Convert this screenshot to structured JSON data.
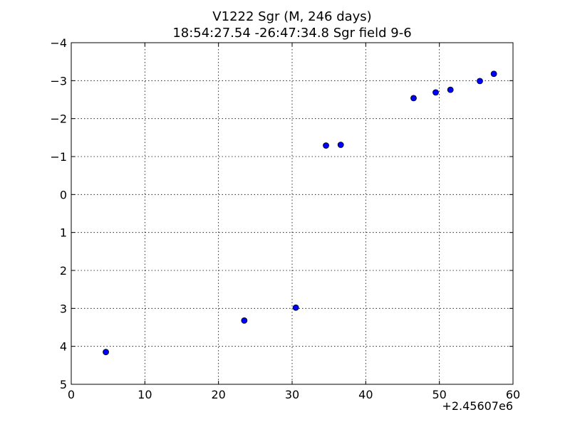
{
  "chart_data": {
    "type": "scatter",
    "title": "V1222 Sgr  (M, 246 days)",
    "subtitle": "18:54:27.54 -26:47:34.8 Sgr field 9-6",
    "xlabel": "",
    "ylabel": "",
    "x_offset_label": "+2.45607e6",
    "xlim": [
      0,
      60
    ],
    "ylim": [
      5,
      -4
    ],
    "y_inverted": true,
    "grid": true,
    "x_ticks": [
      0,
      10,
      20,
      30,
      40,
      50,
      60
    ],
    "y_ticks": [
      -4,
      -3,
      -2,
      -1,
      0,
      1,
      2,
      3,
      4,
      5
    ],
    "x_tick_labels": [
      "0",
      "10",
      "20",
      "30",
      "40",
      "50",
      "60"
    ],
    "y_tick_labels": [
      "−4",
      "−3",
      "−2",
      "−1",
      "0",
      "1",
      "2",
      "3",
      "4",
      "5"
    ],
    "marker_color": "#0000ff",
    "series": [
      {
        "points": [
          {
            "x": 4.7,
            "y": 4.15,
            "err": 0.08
          },
          {
            "x": 23.5,
            "y": 3.32,
            "err": 0.03
          },
          {
            "x": 30.5,
            "y": 2.98,
            "err": 0.03
          },
          {
            "x": 34.6,
            "y": -1.29,
            "err": 0.03
          },
          {
            "x": 36.6,
            "y": -1.31,
            "err": 0.03
          },
          {
            "x": 46.5,
            "y": -2.54,
            "err": 0.03
          },
          {
            "x": 49.5,
            "y": -2.69,
            "err": 0.03
          },
          {
            "x": 51.5,
            "y": -2.76,
            "err": 0.03
          },
          {
            "x": 55.5,
            "y": -2.99,
            "err": 0.03
          },
          {
            "x": 57.4,
            "y": -3.18,
            "err": 0.03
          }
        ]
      }
    ]
  }
}
